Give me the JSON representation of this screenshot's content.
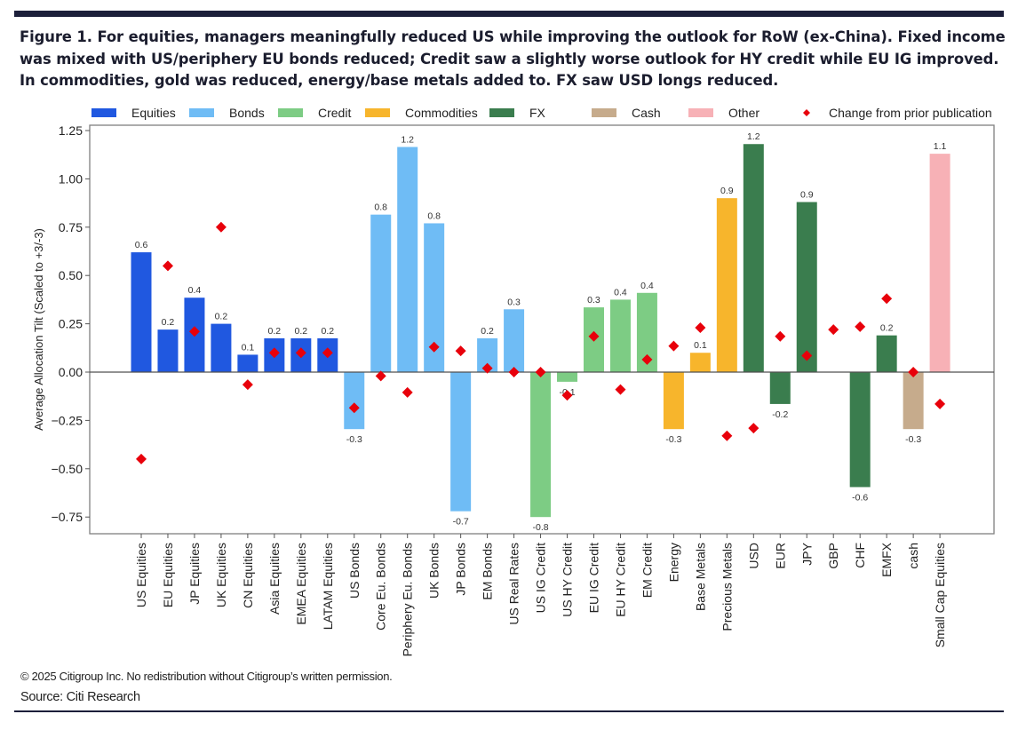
{
  "figure": {
    "title": "Figure 1. For equities, managers meaningfully reduced US while improving the outlook for RoW (ex-China). Fixed income was mixed with US/periphery EU bonds reduced; Credit saw a slightly worse outlook for HY credit while EU IG improved. In commodities, gold was reduced, energy/base metals added to. FX saw USD longs reduced.",
    "copyright": "© 2025 Citigroup Inc. No redistribution without Citigroup’s written permission.",
    "source": "Source: Citi Research"
  },
  "chart_data": {
    "type": "bar",
    "title": "",
    "xlabel": "",
    "ylabel": "Average Allocation Tilt (Scaled to +3/-3)",
    "ylim": [
      -0.85,
      1.28
    ],
    "yticks": [
      -0.75,
      -0.5,
      -0.25,
      0.0,
      0.25,
      0.5,
      0.75,
      1.0,
      1.25
    ],
    "ytick_labels": [
      "−0.75",
      "−0.50",
      "−0.25",
      "0.00",
      "0.25",
      "0.50",
      "0.75",
      "1.00",
      "1.25"
    ],
    "grid": false,
    "legend_position": "top",
    "legend": [
      {
        "name": "Equities",
        "color": "#2058e0",
        "kind": "bar"
      },
      {
        "name": "Bonds",
        "color": "#6fbcf5",
        "kind": "bar"
      },
      {
        "name": "Credit",
        "color": "#7dcc84",
        "kind": "bar"
      },
      {
        "name": "Commodities",
        "color": "#f7b52c",
        "kind": "bar"
      },
      {
        "name": "FX",
        "color": "#3a7d4e",
        "kind": "bar"
      },
      {
        "name": "Cash",
        "color": "#c6ab8c",
        "kind": "bar"
      },
      {
        "name": "Other",
        "color": "#f7b1b6",
        "kind": "bar"
      },
      {
        "name": "Change from prior publication",
        "color": "#e8000b",
        "kind": "marker"
      }
    ],
    "categories": [
      "US Equities",
      "EU Equities",
      "JP Equities",
      "UK Equities",
      "CN Equities",
      "Asia Equities",
      "EMEA Equities",
      "LATAM Equities",
      "US Bonds",
      "Core Eu. Bonds",
      "Periphery Eu. Bonds",
      "UK Bonds",
      "JP Bonds",
      "EM Bonds",
      "US Real Rates",
      "US IG Credit",
      "US HY Credit",
      "EU IG Credit",
      "EU HY Credit",
      "EM Credit",
      "Energy",
      "Base Metals",
      "Precious Metals",
      "USD",
      "EUR",
      "JPY",
      "GBP",
      "CHF",
      "EMFX",
      "cash",
      "Small Cap Equities"
    ],
    "groups": [
      "Equities",
      "Equities",
      "Equities",
      "Equities",
      "Equities",
      "Equities",
      "Equities",
      "Equities",
      "Bonds",
      "Bonds",
      "Bonds",
      "Bonds",
      "Bonds",
      "Bonds",
      "Bonds",
      "Credit",
      "Credit",
      "Credit",
      "Credit",
      "Credit",
      "Commodities",
      "Commodities",
      "Commodities",
      "FX",
      "FX",
      "FX",
      "FX",
      "FX",
      "FX",
      "Cash",
      "Other"
    ],
    "series": [
      {
        "name": "Average Allocation Tilt",
        "kind": "bar",
        "values": [
          0.62,
          0.22,
          0.385,
          0.25,
          0.09,
          0.175,
          0.175,
          0.175,
          -0.295,
          0.815,
          1.165,
          0.77,
          -0.72,
          0.175,
          0.325,
          -0.75,
          -0.05,
          0.335,
          0.375,
          0.41,
          -0.295,
          0.1,
          0.9,
          1.18,
          -0.165,
          0.88,
          0.0,
          -0.595,
          0.19,
          -0.295,
          1.13
        ],
        "labels": [
          "0.6",
          "0.2",
          "0.4",
          "0.2",
          "0.1",
          "0.2",
          "0.2",
          "0.2",
          "-0.3",
          "0.8",
          "1.2",
          "0.8",
          "-0.7",
          "0.2",
          "0.3",
          "-0.8",
          "-0.1",
          "0.3",
          "0.4",
          "0.4",
          "-0.3",
          "0.1",
          "0.9",
          "1.2",
          "-0.2",
          "0.9",
          "",
          "-0.6",
          "0.2",
          "-0.3",
          "1.1"
        ]
      },
      {
        "name": "Change from prior publication",
        "kind": "marker",
        "values": [
          -0.45,
          0.55,
          0.21,
          0.75,
          -0.065,
          0.1,
          0.1,
          0.1,
          -0.185,
          -0.02,
          -0.105,
          0.13,
          0.11,
          0.02,
          0.0,
          0.0,
          -0.12,
          0.185,
          -0.09,
          0.065,
          0.135,
          0.23,
          -0.33,
          -0.29,
          0.185,
          0.085,
          0.22,
          0.235,
          0.38,
          0.0,
          -0.165
        ]
      }
    ]
  }
}
